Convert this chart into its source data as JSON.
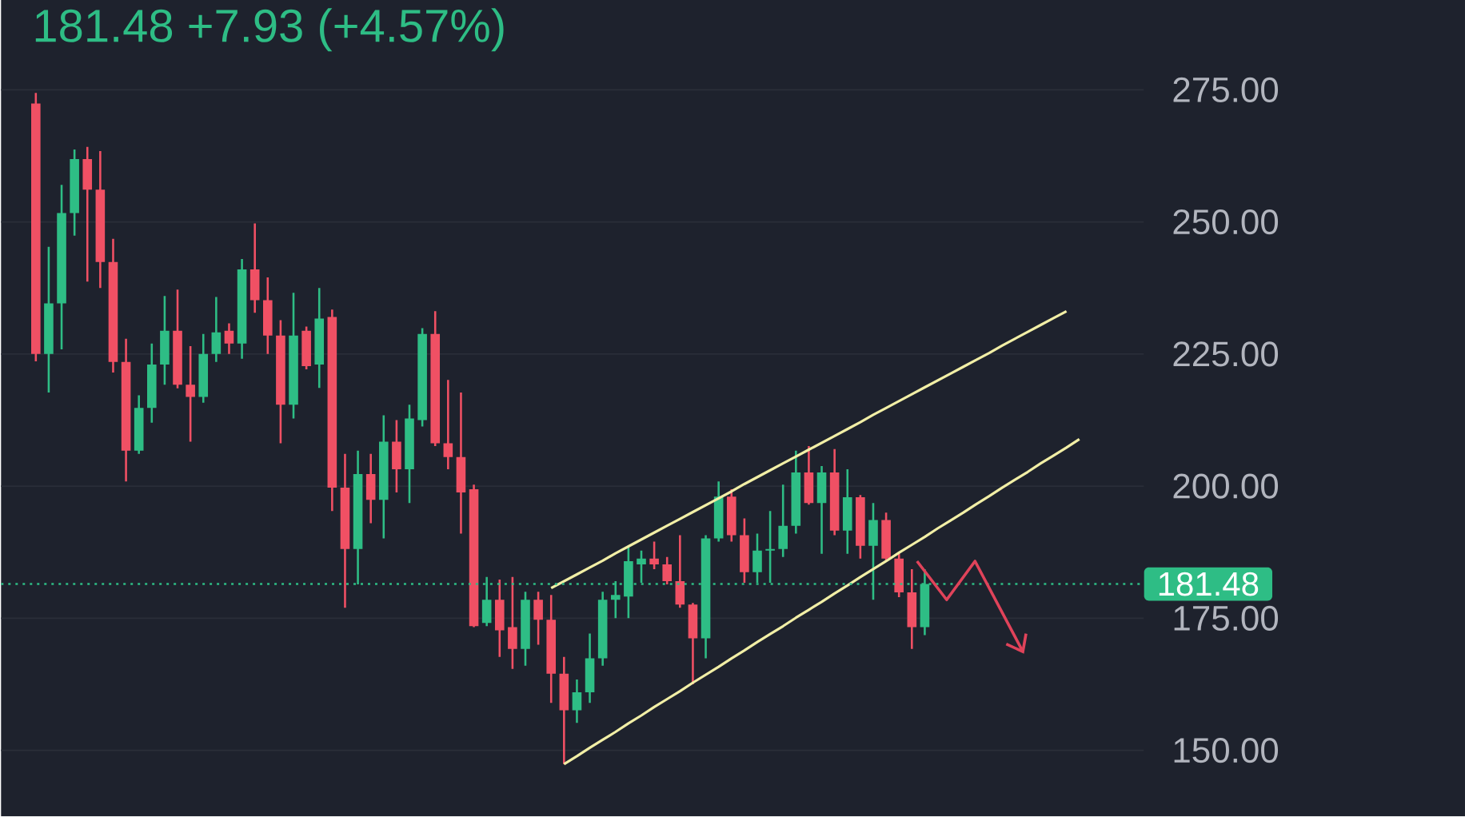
{
  "chart_data": {
    "type": "candlestick",
    "title": "181.48  +7.93 (+4.57%)",
    "categories": [
      null,
      null,
      null,
      null,
      null,
      null,
      null,
      null,
      null,
      null,
      null,
      null,
      null,
      null,
      null,
      null,
      null,
      null,
      null,
      null,
      null,
      null,
      null,
      null,
      null,
      null,
      null,
      null,
      null,
      null,
      null,
      null,
      null,
      null,
      null,
      null,
      null,
      null,
      null,
      null,
      null,
      null,
      null,
      null,
      null,
      null,
      null,
      null,
      null,
      null,
      null,
      null,
      null,
      null,
      null,
      null,
      null,
      null,
      null,
      null,
      null,
      null,
      null,
      null,
      null,
      null,
      null,
      null,
      null,
      null,
      null,
      null,
      null,
      null,
      null,
      null,
      null,
      null,
      null,
      null,
      null,
      null
    ],
    "ohlc": [
      [
        272.4,
        274.4,
        223.6,
        225.0
      ],
      [
        225.0,
        245.3,
        217.7,
        234.6
      ],
      [
        234.6,
        257.0,
        225.9,
        251.7
      ],
      [
        251.7,
        263.7,
        247.4,
        261.9
      ],
      [
        261.9,
        264.2,
        238.7,
        256.1
      ],
      [
        256.1,
        263.4,
        237.5,
        242.4
      ],
      [
        242.4,
        246.8,
        221.5,
        223.5
      ],
      [
        223.5,
        227.9,
        200.9,
        206.7
      ],
      [
        206.7,
        217.2,
        206.1,
        214.8
      ],
      [
        214.8,
        227.0,
        212.0,
        223.0
      ],
      [
        223.0,
        236.0,
        219.2,
        229.4
      ],
      [
        229.4,
        237.2,
        218.5,
        219.2
      ],
      [
        219.2,
        226.5,
        208.4,
        216.9
      ],
      [
        216.9,
        228.8,
        215.8,
        225.0
      ],
      [
        225.0,
        235.8,
        223.5,
        229.1
      ],
      [
        229.4,
        230.8,
        225.0,
        227.0
      ],
      [
        227.0,
        243.0,
        224.1,
        241.0
      ],
      [
        241.0,
        249.7,
        232.8,
        235.2
      ],
      [
        235.2,
        239.5,
        225.0,
        228.5
      ],
      [
        228.5,
        231.4,
        208.1,
        215.4
      ],
      [
        215.4,
        236.6,
        212.8,
        228.5
      ],
      [
        229.4,
        230.2,
        222.1,
        222.7
      ],
      [
        223.0,
        237.5,
        218.6,
        231.7
      ],
      [
        232.0,
        233.4,
        195.3,
        199.7
      ],
      [
        199.7,
        206.1,
        177.0,
        188.1
      ],
      [
        188.1,
        206.7,
        181.4,
        202.3
      ],
      [
        202.3,
        206.1,
        193.0,
        197.4
      ],
      [
        197.4,
        213.4,
        190.1,
        208.4
      ],
      [
        208.4,
        212.5,
        198.8,
        203.2
      ],
      [
        203.2,
        215.4,
        196.8,
        212.8
      ],
      [
        212.5,
        229.9,
        211.3,
        228.8
      ],
      [
        228.8,
        233.1,
        207.6,
        208.1
      ],
      [
        208.1,
        220.1,
        203.2,
        205.5
      ],
      [
        205.5,
        217.7,
        191.0,
        198.8
      ],
      [
        199.4,
        200.3,
        173.3,
        173.5
      ],
      [
        174.1,
        182.8,
        173.5,
        178.5
      ],
      [
        178.5,
        182.3,
        167.7,
        172.7
      ],
      [
        173.3,
        182.8,
        165.4,
        169.2
      ],
      [
        169.2,
        180.0,
        166.0,
        178.5
      ],
      [
        178.5,
        180.0,
        170.0,
        174.7
      ],
      [
        174.7,
        179.4,
        159.0,
        164.5
      ],
      [
        164.5,
        167.7,
        147.4,
        157.6
      ],
      [
        157.6,
        163.4,
        155.2,
        161.0
      ],
      [
        161.0,
        172.1,
        159.0,
        167.4
      ],
      [
        167.4,
        180.0,
        166.0,
        178.5
      ],
      [
        178.5,
        182.0,
        175.0,
        179.4
      ],
      [
        179.1,
        188.7,
        175.0,
        185.8
      ],
      [
        185.2,
        187.8,
        181.7,
        186.3
      ],
      [
        186.3,
        189.5,
        184.3,
        185.2
      ],
      [
        185.2,
        186.6,
        181.4,
        182.0
      ],
      [
        182.0,
        190.7,
        177.0,
        177.6
      ],
      [
        177.6,
        177.9,
        162.5,
        171.2
      ],
      [
        171.2,
        190.7,
        167.4,
        190.1
      ],
      [
        190.1,
        200.9,
        189.5,
        198.0
      ],
      [
        198.0,
        199.4,
        189.5,
        190.7
      ],
      [
        190.7,
        193.9,
        181.7,
        183.7
      ],
      [
        183.7,
        191.0,
        181.7,
        187.8
      ],
      [
        187.8,
        195.3,
        181.7,
        188.1
      ],
      [
        188.1,
        200.3,
        186.6,
        192.5
      ],
      [
        192.5,
        206.7,
        191.0,
        202.6
      ],
      [
        202.6,
        207.6,
        196.5,
        196.8
      ],
      [
        196.8,
        203.8,
        187.2,
        202.6
      ],
      [
        202.6,
        207.0,
        190.7,
        191.6
      ],
      [
        191.6,
        203.2,
        187.2,
        197.9
      ],
      [
        197.9,
        198.3,
        186.3,
        188.7
      ],
      [
        188.7,
        196.8,
        178.5,
        193.6
      ],
      [
        193.6,
        195.0,
        185.8,
        186.3
      ],
      [
        186.3,
        187.2,
        179.0,
        179.9
      ],
      [
        179.9,
        184.3,
        169.2,
        173.3
      ],
      [
        173.3,
        184.3,
        171.8,
        181.48
      ],
      null,
      null,
      null,
      null,
      null,
      null,
      null,
      null,
      null,
      null,
      null,
      null
    ],
    "colors": [
      "#f05064",
      "#2ebd85",
      "#2ebd85",
      "#2ebd85",
      "#f05064",
      "#f05064",
      "#f05064",
      "#f05064",
      "#2ebd85",
      "#2ebd85",
      "#2ebd85",
      "#f05064",
      "#f05064",
      "#2ebd85",
      "#2ebd85",
      "#f05064",
      "#2ebd85",
      "#f05064",
      "#f05064",
      "#f05064",
      "#2ebd85",
      "#f05064",
      "#2ebd85",
      "#f05064",
      "#f05064",
      "#2ebd85",
      "#f05064",
      "#2ebd85",
      "#f05064",
      "#2ebd85",
      "#2ebd85",
      "#f05064",
      "#f05064",
      "#f05064",
      "#f05064",
      "#2ebd85",
      "#f05064",
      "#f05064",
      "#2ebd85",
      "#f05064",
      "#f05064",
      "#f05064",
      "#2ebd85",
      "#2ebd85",
      "#2ebd85",
      "#2ebd85",
      "#2ebd85",
      "#2ebd85",
      "#f05064",
      "#f05064",
      "#f05064",
      "#f05064",
      "#2ebd85",
      "#2ebd85",
      "#f05064",
      "#f05064",
      "#2ebd85",
      "#2ebd85",
      "#2ebd85",
      "#2ebd85",
      "#f05064",
      "#2ebd85",
      "#f05064",
      "#2ebd85",
      "#f05064",
      "#2ebd85",
      "#f05064",
      "#f05064",
      "#f05064",
      "#2ebd85",
      null,
      null,
      null,
      null,
      null,
      null,
      null,
      null,
      null,
      null,
      null,
      null
    ],
    "series": [
      {
        "type": "line",
        "color": "#f2efa6",
        "values": [
          null,
          null,
          null,
          null,
          null,
          null,
          null,
          null,
          null,
          null,
          null,
          null,
          null,
          null,
          null,
          null,
          null,
          null,
          null,
          null,
          null,
          null,
          null,
          null,
          null,
          null,
          null,
          null,
          null,
          null,
          null,
          null,
          null,
          null,
          null,
          null,
          null,
          null,
          null,
          null,
          180.7,
          182.0,
          183.3,
          184.6,
          185.9,
          187.3,
          188.6,
          189.9,
          191.2,
          192.5,
          193.8,
          195.1,
          196.4,
          197.7,
          199.0,
          200.4,
          201.7,
          203.0,
          204.3,
          205.6,
          206.9,
          208.2,
          209.5,
          210.8,
          212.1,
          213.5,
          214.8,
          216.1,
          217.4,
          218.7,
          220.0,
          221.3,
          222.6,
          223.9,
          225.2,
          226.6,
          227.9,
          229.2,
          230.5,
          231.8,
          233.1,
          null
        ]
      },
      {
        "type": "line",
        "color": "#f2efa6",
        "values": [
          null,
          null,
          null,
          null,
          null,
          null,
          null,
          null,
          null,
          null,
          null,
          null,
          null,
          null,
          null,
          null,
          null,
          null,
          null,
          null,
          null,
          null,
          null,
          null,
          null,
          null,
          null,
          null,
          null,
          null,
          null,
          null,
          null,
          null,
          null,
          null,
          null,
          null,
          null,
          null,
          null,
          147.4,
          148.9,
          150.5,
          152.0,
          153.5,
          155.1,
          156.6,
          158.2,
          159.7,
          161.2,
          162.8,
          164.3,
          165.8,
          167.4,
          168.9,
          170.5,
          172.0,
          173.5,
          175.1,
          176.6,
          178.1,
          179.7,
          181.2,
          182.8,
          184.3,
          185.8,
          187.4,
          188.9,
          190.4,
          192.0,
          193.5,
          195.0,
          196.6,
          198.1,
          199.7,
          201.2,
          202.7,
          204.3,
          205.8,
          207.3,
          208.9
        ]
      }
    ],
    "ylim": [
      137.5,
      292
    ],
    "yticks": [
      {
        "value": 150,
        "label": "150.00"
      },
      {
        "value": 175,
        "label": "175.00"
      },
      {
        "value": 200,
        "label": "200.00"
      },
      {
        "value": 225,
        "label": "225.00"
      },
      {
        "value": 250,
        "label": "250.00"
      },
      {
        "value": 275,
        "label": "275.00"
      }
    ],
    "ref_lines": [
      {
        "axis": "y",
        "value": 181.48,
        "label": "181.48",
        "color": "#2ebd85",
        "line_style": "dotted"
      }
    ],
    "grid": "y",
    "tick_labels": "y",
    "marker": "none"
  }
}
